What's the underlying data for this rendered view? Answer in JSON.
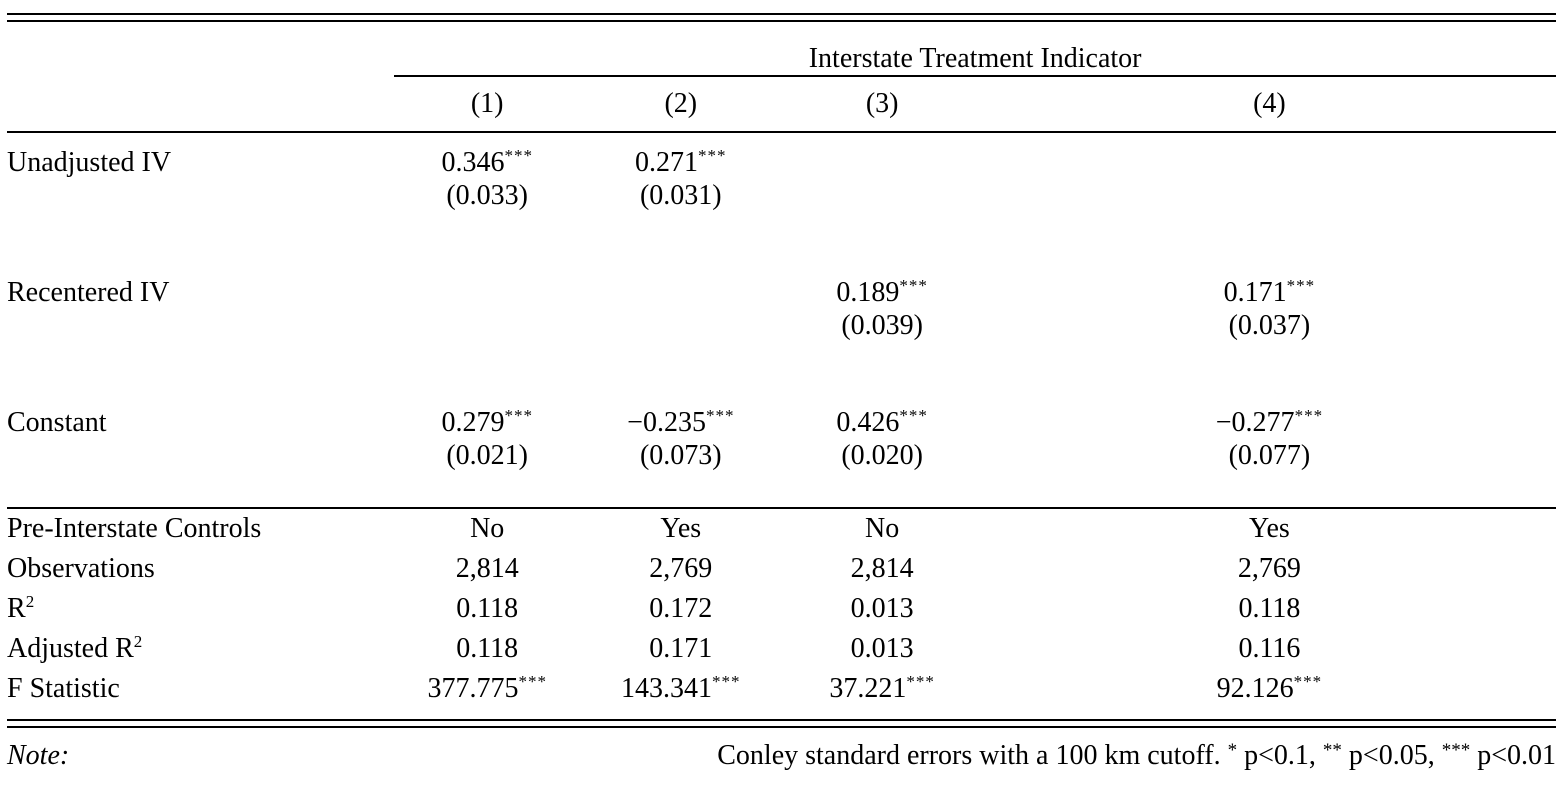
{
  "page": {
    "background": "#ffffff",
    "text_color": "#000000"
  },
  "table": {
    "span_header": "Interstate Treatment Indicator",
    "column_headers": [
      "(1)",
      "(2)",
      "(3)",
      "(4)"
    ],
    "coef_rows": [
      {
        "label": "Unadjusted IV",
        "cells": [
          {
            "est": "0.346",
            "stars": "***",
            "se": "(0.033)"
          },
          {
            "est": "0.271",
            "stars": "***",
            "se": "(0.031)"
          },
          {},
          {}
        ]
      },
      {
        "label": "Recentered IV",
        "cells": [
          {},
          {},
          {
            "est": "0.189",
            "stars": "***",
            "se": "(0.039)"
          },
          {
            "est": "0.171",
            "stars": "***",
            "se": "(0.037)"
          }
        ]
      },
      {
        "label": "Constant",
        "cells": [
          {
            "est": "0.279",
            "stars": "***",
            "se": "(0.021)"
          },
          {
            "est": "−0.235",
            "stars": "***",
            "se": "(0.073)"
          },
          {
            "est": "0.426",
            "stars": "***",
            "se": "(0.020)"
          },
          {
            "est": "−0.277",
            "stars": "***",
            "se": "(0.077)"
          }
        ]
      }
    ],
    "stat_rows": [
      {
        "label": "Pre-Interstate Controls",
        "label_sup": "",
        "values": [
          {
            "v": "No",
            "stars": ""
          },
          {
            "v": "Yes",
            "stars": ""
          },
          {
            "v": "No",
            "stars": ""
          },
          {
            "v": "Yes",
            "stars": ""
          }
        ]
      },
      {
        "label": "Observations",
        "label_sup": "",
        "values": [
          {
            "v": "2,814",
            "stars": ""
          },
          {
            "v": "2,769",
            "stars": ""
          },
          {
            "v": "2,814",
            "stars": ""
          },
          {
            "v": "2,769",
            "stars": ""
          }
        ]
      },
      {
        "label": "R",
        "label_sup": "2",
        "values": [
          {
            "v": "0.118",
            "stars": ""
          },
          {
            "v": "0.172",
            "stars": ""
          },
          {
            "v": "0.013",
            "stars": ""
          },
          {
            "v": "0.118",
            "stars": ""
          }
        ]
      },
      {
        "label": "Adjusted R",
        "label_sup": "2",
        "values": [
          {
            "v": "0.118",
            "stars": ""
          },
          {
            "v": "0.171",
            "stars": ""
          },
          {
            "v": "0.013",
            "stars": ""
          },
          {
            "v": "0.116",
            "stars": ""
          }
        ]
      },
      {
        "label": "F Statistic",
        "label_sup": "",
        "values": [
          {
            "v": "377.775",
            "stars": "***"
          },
          {
            "v": "143.341",
            "stars": "***"
          },
          {
            "v": "37.221",
            "stars": "***"
          },
          {
            "v": "92.126",
            "stars": "***"
          }
        ]
      }
    ],
    "note": {
      "label": "Note:",
      "segments": [
        {
          "t": "Conley standard errors with a 100 km cutoff. "
        },
        {
          "s": "*"
        },
        {
          "t": " p<0.1, "
        },
        {
          "s": "**"
        },
        {
          "t": " p<0.05, "
        },
        {
          "s": "***"
        },
        {
          "t": " p<0.01"
        }
      ]
    }
  }
}
